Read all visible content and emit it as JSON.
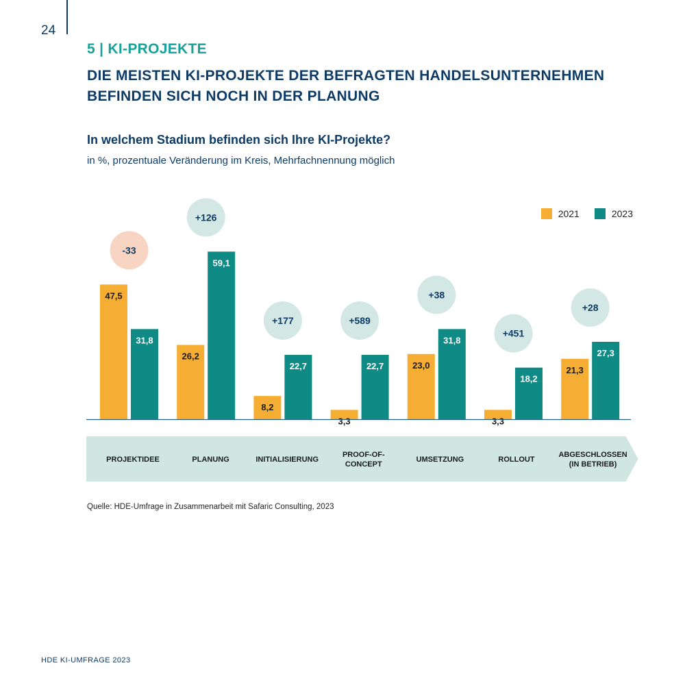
{
  "page": {
    "number": "24",
    "section_label": "5 | KI-PROJEKTE",
    "headline_line1": "DIE MEISTEN KI-PROJEKTE DER BEFRAGTEN HANDELSUNTERNEHMEN",
    "headline_line2": "BEFINDEN SICH NOCH IN DER PLANUNG",
    "question": "In welchem Stadium befinden sich Ihre KI-Projekte?",
    "subtitle": "in %, prozentuale Veränderung im Kreis, Mehrfachnennung möglich",
    "source": "Quelle: HDE-Umfrage in Zusammenarbeit mit Safaric Consulting, 2023",
    "footer": "HDE KI-UMFRAGE 2023"
  },
  "colors": {
    "series_2021": "#f5ae33",
    "series_2023": "#0f8a84",
    "change_positive_bg": "#d3e8e4",
    "change_negative_bg": "#f8d4c3",
    "stage_arrow_bg": "#cfe6e1",
    "dark_text": "#0d3b66",
    "accent": "#17a39a"
  },
  "chart_data": {
    "type": "bar",
    "title": "In welchem Stadium befinden sich Ihre KI-Projekte?",
    "unit": "in %",
    "categories": [
      "PROJEKTIDEE",
      "PLANUNG",
      "INITIALISIERUNG",
      "PROOF-OF-CONCEPT",
      "UMSETZUNG",
      "ROLLOUT",
      "ABGESCHLOSSEN (IN BETRIEB)"
    ],
    "category_lines": [
      [
        "PROJEKTIDEE"
      ],
      [
        "PLANUNG"
      ],
      [
        "INITIALISIERUNG"
      ],
      [
        "PROOF-OF-",
        "CONCEPT"
      ],
      [
        "UMSETZUNG"
      ],
      [
        "ROLLOUT"
      ],
      [
        "ABGESCHLOSSEN",
        "(IN BETRIEB)"
      ]
    ],
    "series": [
      {
        "name": "2021",
        "values": [
          47.5,
          26.2,
          8.2,
          3.3,
          23.0,
          3.3,
          21.3
        ],
        "labels": [
          "47,5",
          "26,2",
          "8,2",
          "3,3",
          "23,0",
          "3,3",
          "21,3"
        ]
      },
      {
        "name": "2023",
        "values": [
          31.8,
          59.1,
          22.7,
          22.7,
          31.8,
          18.2,
          27.3
        ],
        "labels": [
          "31,8",
          "59,1",
          "22,7",
          "22,7",
          "31,8",
          "18,2",
          "27,3"
        ]
      }
    ],
    "change_values": [
      -33,
      126,
      177,
      589,
      38,
      451,
      28
    ],
    "change_labels": [
      "-33",
      "+126",
      "+177",
      "+589",
      "+38",
      "+451",
      "+28"
    ],
    "ylim": [
      0,
      60
    ],
    "legend_position": "top-right",
    "grid": false
  }
}
